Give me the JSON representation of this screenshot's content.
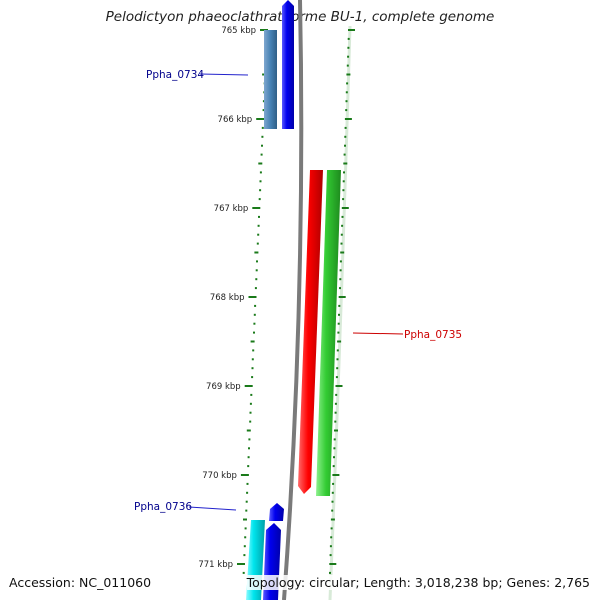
{
  "title": "Pelodictyon phaeoclathratiforme BU-1, complete genome",
  "accession": "Accession: NC_011060",
  "stats": "Topology: circular; Length: 3,018,238 bp; Genes: 2,765",
  "scale": {
    "unit": "kbp",
    "labels": [
      "765 kbp",
      "766 kbp",
      "767 kbp",
      "768 kbp",
      "769 kbp",
      "770 kbp",
      "771 kbp"
    ]
  },
  "colors": {
    "backbone": "#808080",
    "tick": "#1a7a1a",
    "gene_forward": "#0000ee",
    "gene_forward_label": "#00008b",
    "gene_reverse": "#ff0000",
    "gene_reverse_label": "#cc0000",
    "gc_plus": "#33cc33",
    "gc_shade": "#4682b4",
    "gc_cyan": "#00e5ee"
  },
  "genes": [
    {
      "label": "Ppha_0734",
      "strand": "forward"
    },
    {
      "label": "Ppha_0735",
      "strand": "reverse"
    },
    {
      "label": "Ppha_0736",
      "strand": "forward"
    }
  ]
}
